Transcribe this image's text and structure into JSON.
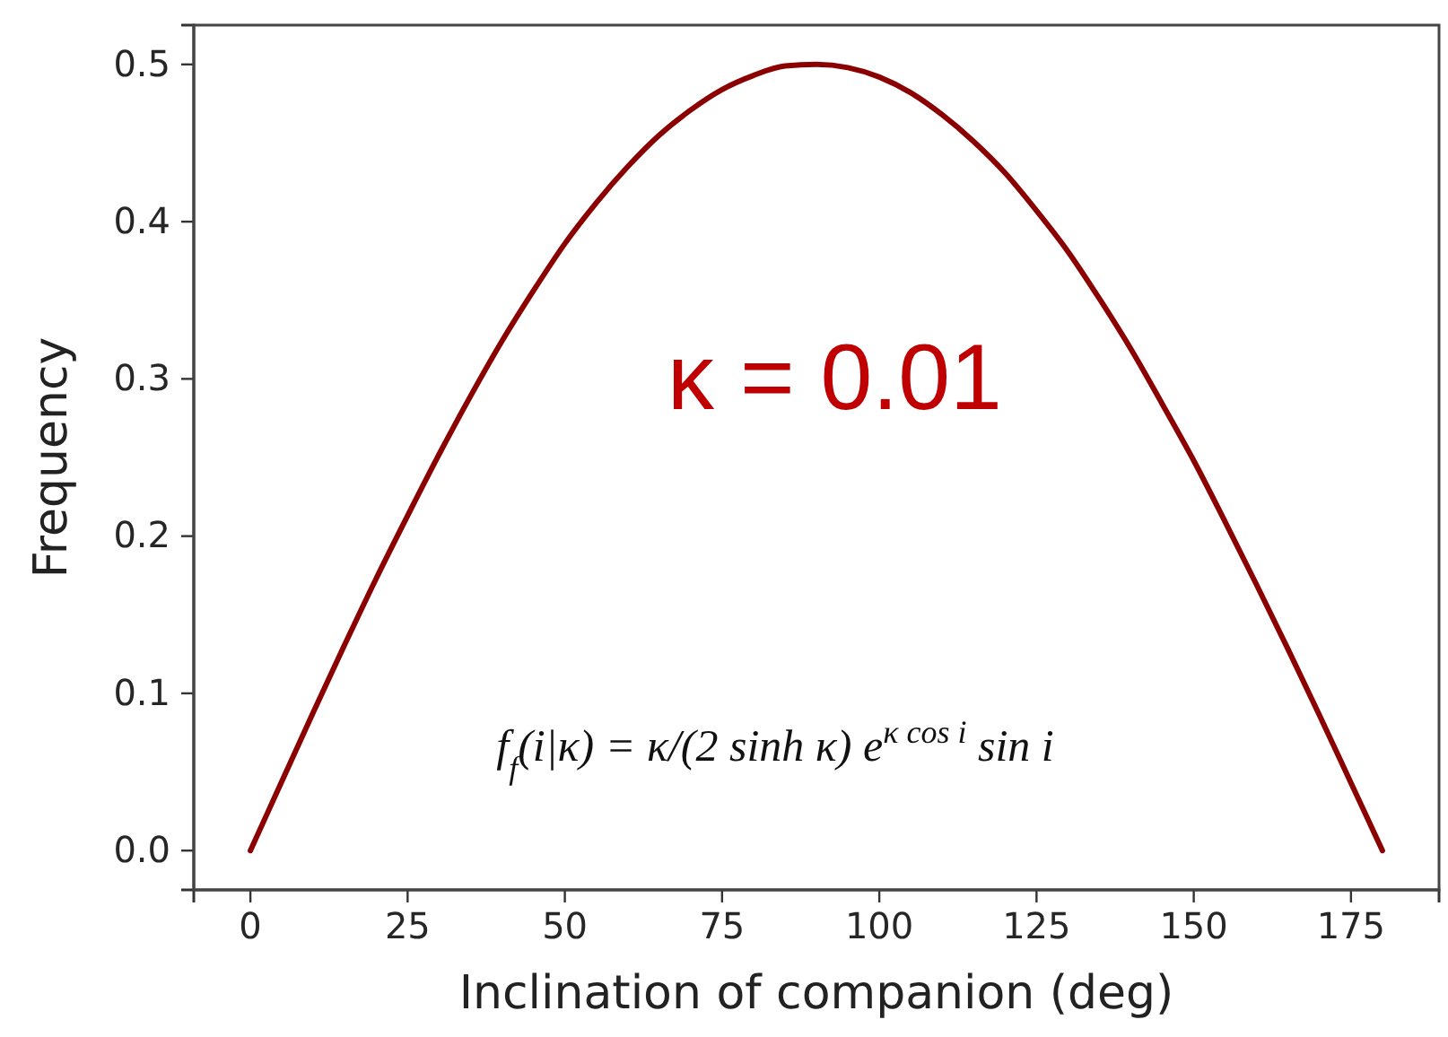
{
  "chart_data": {
    "type": "line",
    "xlabel": "Inclination of companion (deg)",
    "ylabel": "Frequency",
    "annotations": [
      "κ = 0.01",
      "f$_{f}$(i|κ) = κ/(2 sinh κ) e$^{κ cos i}$ sin i"
    ],
    "x": [
      0,
      5,
      10,
      15,
      20,
      25,
      30,
      35,
      40,
      45,
      50,
      55,
      60,
      65,
      70,
      75,
      80,
      85,
      90,
      95,
      100,
      105,
      110,
      115,
      120,
      125,
      130,
      135,
      140,
      145,
      150,
      155,
      160,
      165,
      170,
      175,
      180
    ],
    "series": [
      {
        "color": "#8b0000",
        "values": [
          0,
          0.044,
          0.088,
          0.131,
          0.173,
          0.213,
          0.252,
          0.289,
          0.324,
          0.356,
          0.386,
          0.412,
          0.435,
          0.455,
          0.471,
          0.484,
          0.493,
          0.499,
          0.5,
          0.498,
          0.492,
          0.482,
          0.468,
          0.451,
          0.431,
          0.407,
          0.381,
          0.351,
          0.319,
          0.284,
          0.248,
          0.209,
          0.169,
          0.128,
          0.086,
          0.043,
          0
        ]
      }
    ],
    "xlim": [
      -9,
      189
    ],
    "xticks": [
      0,
      25,
      50,
      75,
      100,
      125,
      150,
      175
    ],
    "ylim": [
      -0.025,
      0.525
    ],
    "yticks": [
      {
        "value": 0,
        "label": "0.0"
      },
      0.1,
      0.2,
      0.3,
      0.4,
      0.5
    ]
  }
}
